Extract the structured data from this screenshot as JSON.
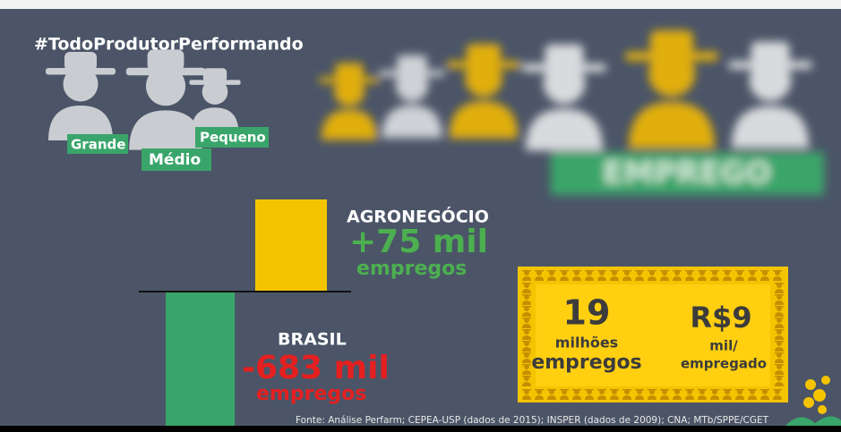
{
  "header": {
    "hashtag": "#TodoProdutorPerformando"
  },
  "producers": {
    "labels": [
      "Grande",
      "Médio",
      "Pequeno"
    ]
  },
  "banner": "EMPREGO",
  "agro": {
    "name": "AGRONEGÓCIO",
    "value": "+75 mil",
    "unit": "empregos"
  },
  "brasil": {
    "name": "BRASIL",
    "value": "-683 mil",
    "unit": "empregos"
  },
  "stats": {
    "total": {
      "value": "19",
      "lines": [
        "milhões",
        "empregos"
      ]
    },
    "per": {
      "value": "R$9",
      "lines": [
        "mil/",
        "empregado"
      ]
    }
  },
  "source": "Fonte: Análise Perfarm; CEPEA-USP (dados de 2015); INSPER (dados de 2009); CNA; MTb/SPPE/CGET"
}
